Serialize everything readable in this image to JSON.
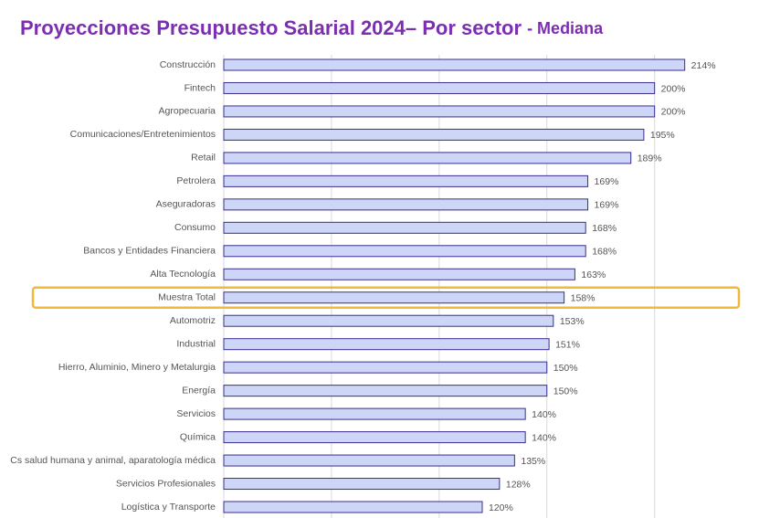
{
  "chart_data": {
    "type": "bar",
    "orientation": "horizontal",
    "title": "Proyecciones Presupuesto Salarial 2024– Por sector",
    "subtitle": "- Mediana",
    "categories": [
      "Construcción",
      "Fintech",
      "Agropecuaria",
      "Comunicaciones/Entretenimientos",
      "Retail",
      "Petrolera",
      "Aseguradoras",
      "Consumo",
      "Bancos y Entidades Financiera",
      "Alta Tecnología",
      "Muestra Total",
      "Automotriz",
      "Industrial",
      "Hierro, Aluminio, Minero y Metalurgia",
      "Energía",
      "Servicios",
      "Química",
      "Cs salud humana y animal, aparatología médica",
      "Servicios Profesionales",
      "Logística y Transporte"
    ],
    "values": [
      214,
      200,
      200,
      195,
      189,
      169,
      169,
      168,
      168,
      163,
      158,
      153,
      151,
      150,
      150,
      140,
      140,
      135,
      128,
      120
    ],
    "value_labels": [
      "214%",
      "200%",
      "200%",
      "195%",
      "189%",
      "169%",
      "169%",
      "168%",
      "168%",
      "163%",
      "158%",
      "153%",
      "151%",
      "150%",
      "150%",
      "140%",
      "140%",
      "135%",
      "128%",
      "120%"
    ],
    "color": "#cdd6f6",
    "edge_color": "#3a2d8f",
    "xlim": [
      0,
      240
    ],
    "xticks": [
      0,
      50,
      100,
      150,
      200
    ],
    "grid": true,
    "highlight": "Muestra Total",
    "highlight_color": "#f0b93a"
  }
}
